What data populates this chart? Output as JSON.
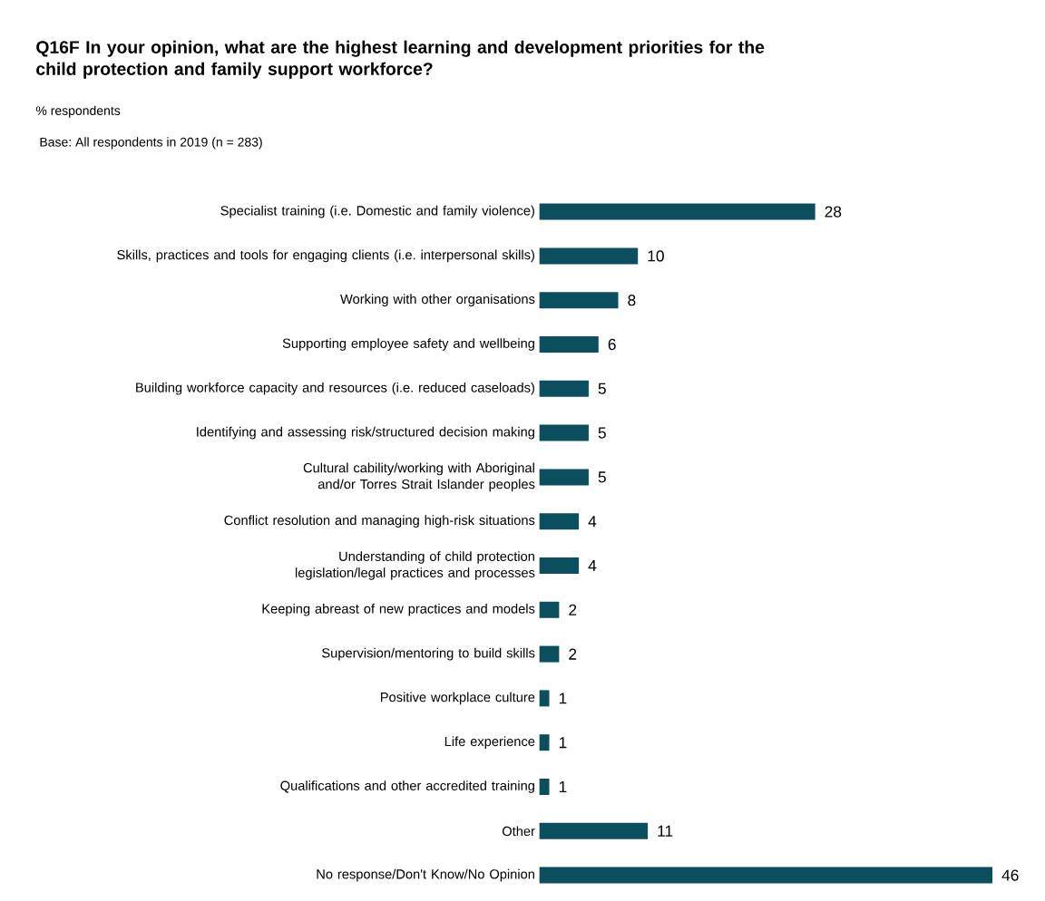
{
  "chart_data": {
    "type": "bar",
    "orientation": "horizontal",
    "title": "Q16F In your opinion, what are the highest learning and development priorities for the child protection and family support workforce?",
    "subtitle": "% respondents",
    "annotations": [
      "Base: All respondents in 2019 (n = 283)"
    ],
    "categories": [
      "Specialist training (i.e. Domestic and family violence)",
      "Skills, practices and tools for engaging clients (i.e. interpersonal skills)",
      "Working with other organisations",
      "Supporting employee safety and wellbeing",
      "Building workforce capacity and resources (i.e. reduced caseloads)",
      "Identifying and assessing risk/structured decision making",
      "Cultural cability/working with Aboriginal and/or Torres Strait Islander peoples",
      "Conflict resolution and managing high-risk situations",
      "Understanding of child protection legislation/legal practices and processes",
      "Keeping abreast of new practices and models",
      "Supervision/mentoring to build skills",
      "Positive workplace culture",
      "Life experience",
      "Qualifications and other accredited training",
      "Other",
      "No response/Don't Know/No Opinion"
    ],
    "values": [
      28,
      10,
      8,
      6,
      5,
      5,
      5,
      4,
      4,
      2,
      2,
      1,
      1,
      1,
      11,
      46
    ],
    "color": "#0b4f5e",
    "data_labels": true
  }
}
